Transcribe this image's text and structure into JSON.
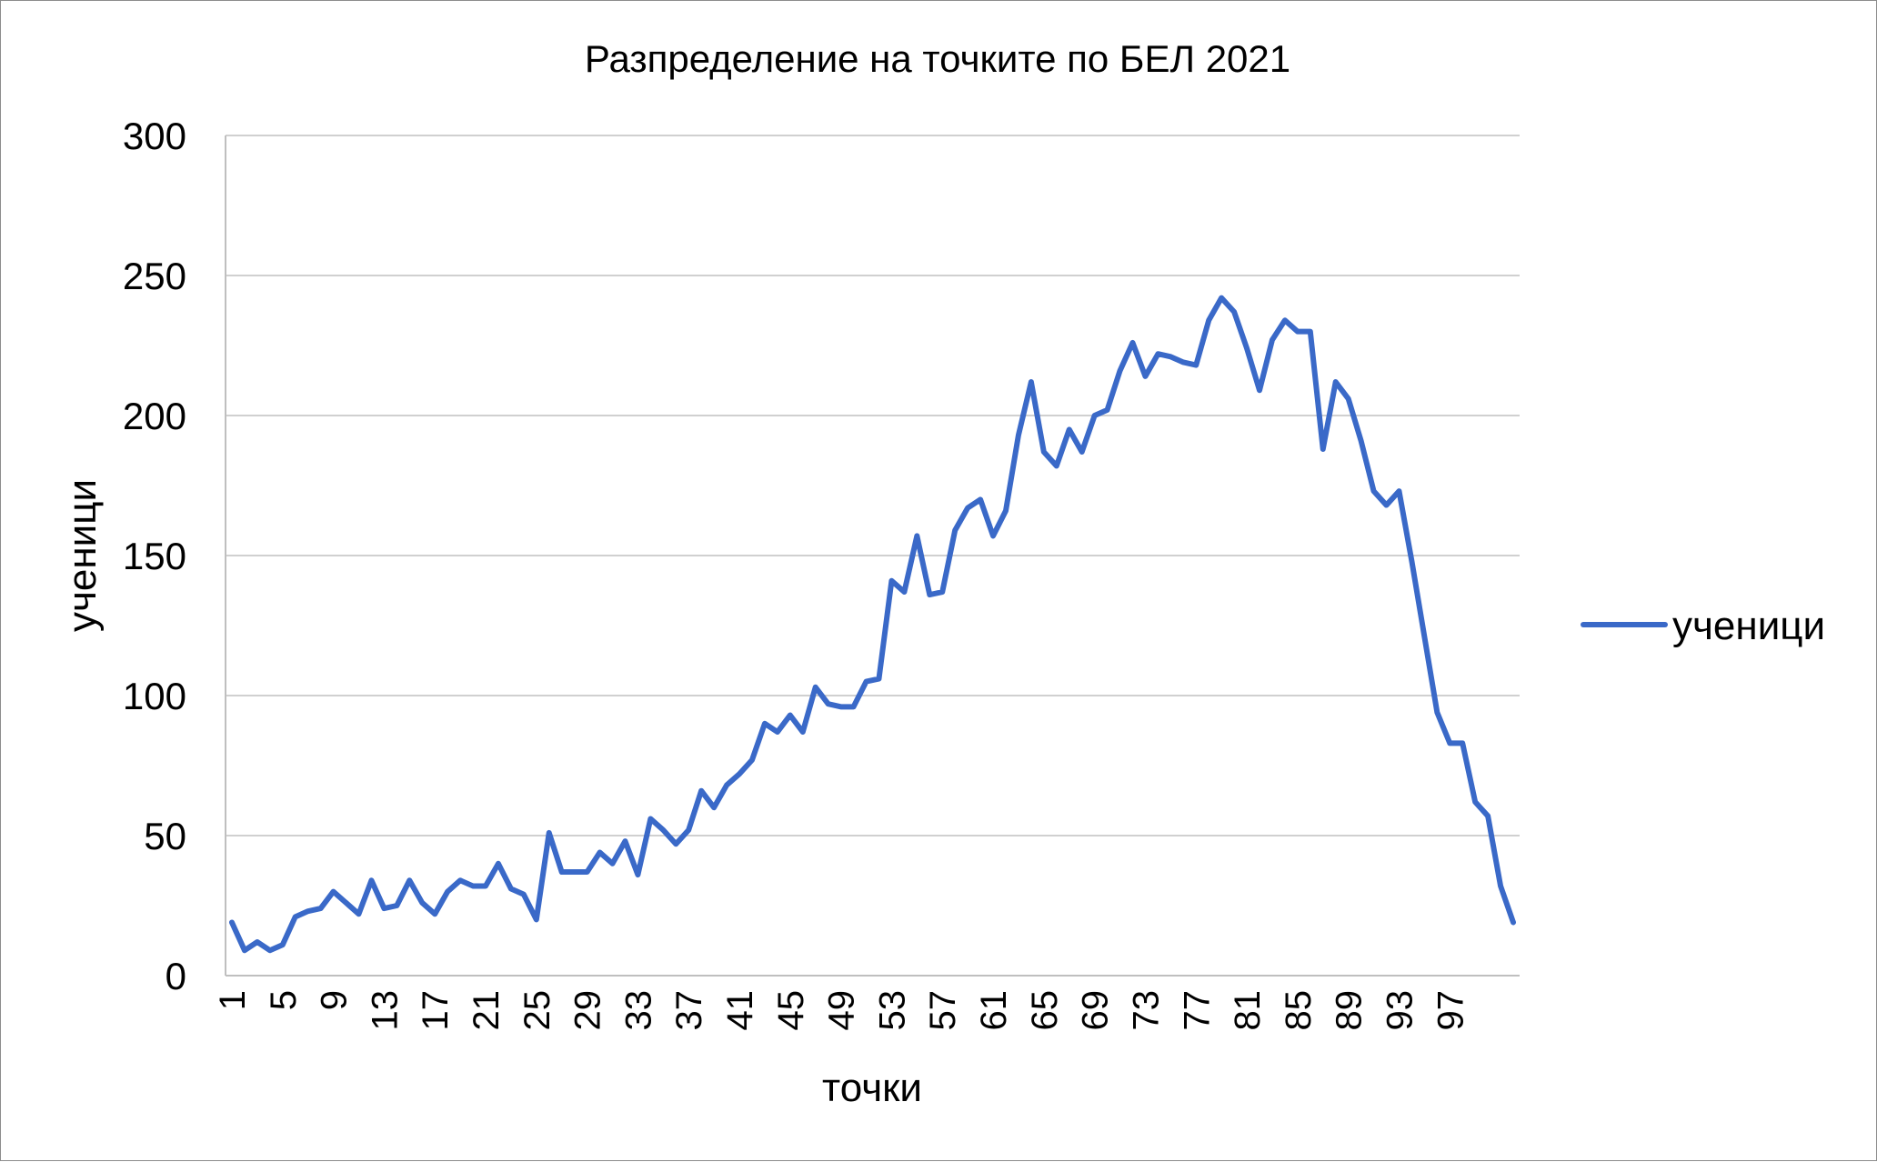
{
  "chart_data": {
    "type": "line",
    "title": "Разпределение на точките по БЕЛ 2021",
    "xlabel": "точки",
    "ylabel": "ученици",
    "ylim": [
      0,
      300
    ],
    "yticks": [
      "0",
      "50",
      "100",
      "150",
      "200",
      "250",
      "300"
    ],
    "xtick_labels": [
      "1",
      "5",
      "9",
      "13",
      "17",
      "21",
      "25",
      "29",
      "33",
      "37",
      "41",
      "45",
      "49",
      "53",
      "57",
      "61",
      "65",
      "69",
      "73",
      "77",
      "81",
      "85",
      "89",
      "93",
      "97"
    ],
    "grid": true,
    "legend_position": "right",
    "series_color": "#3a69c8",
    "series": [
      {
        "name": "ученици",
        "values": [
          19,
          9,
          12,
          9,
          11,
          21,
          23,
          24,
          30,
          26,
          22,
          34,
          24,
          25,
          34,
          26,
          22,
          30,
          34,
          32,
          32,
          40,
          31,
          29,
          20,
          51,
          37,
          37,
          37,
          44,
          40,
          48,
          36,
          56,
          52,
          47,
          52,
          66,
          60,
          68,
          72,
          77,
          90,
          87,
          93,
          87,
          103,
          97,
          96,
          96,
          105,
          106,
          141,
          137,
          157,
          136,
          137,
          159,
          167,
          170,
          157,
          166,
          193,
          212,
          187,
          182,
          195,
          187,
          200,
          202,
          216,
          226,
          214,
          222,
          221,
          219,
          218,
          234,
          242,
          237,
          224,
          209,
          227,
          234,
          230,
          230,
          188,
          212,
          206,
          191,
          173,
          168,
          173,
          148,
          121,
          94,
          83,
          83,
          62,
          57,
          32,
          19
        ]
      }
    ]
  }
}
